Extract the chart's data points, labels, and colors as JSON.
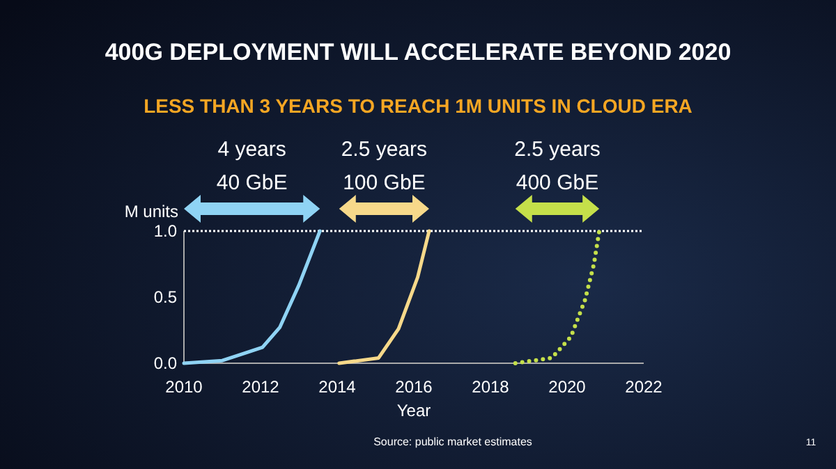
{
  "chart_data": {
    "type": "line",
    "title": "400G DEPLOYMENT WILL ACCELERATE BEYOND 2020",
    "subtitle": "LESS THAN 3 YEARS TO REACH 1M UNITS IN CLOUD ERA",
    "xlabel": "Year",
    "ylabel": "M units",
    "xlim": [
      2010,
      2022
    ],
    "xticks": [
      2010,
      2012,
      2014,
      2016,
      2018,
      2020,
      2022
    ],
    "ylim": [
      0,
      1
    ],
    "yticks": [
      {
        "value": 0,
        "label": "0.0"
      },
      {
        "value": 0.5,
        "label": "0.5"
      },
      {
        "value": 1,
        "label": "1.0"
      }
    ],
    "series": [
      {
        "name": "40 GbE",
        "color": "#8fd3f4",
        "line_style": "solid",
        "x": [
          2010,
          2011,
          2012.05,
          2012.5,
          2013,
          2013.55
        ],
        "values": [
          0,
          0.02,
          0.12,
          0.27,
          0.59,
          1
        ]
      },
      {
        "name": "100 GbE",
        "color": "#f7d98a",
        "line_style": "solid",
        "x": [
          2014.05,
          2015.08,
          2015.6,
          2016.1,
          2016.4
        ],
        "values": [
          0,
          0.04,
          0.26,
          0.65,
          1
        ]
      },
      {
        "name": "400 GbE",
        "color": "#c5e04a",
        "line_style": "dotted",
        "x": [
          2018.65,
          2019.6,
          2020.1,
          2020.47,
          2020.7,
          2020.84
        ],
        "values": [
          0,
          0.04,
          0.2,
          0.48,
          0.75,
          1
        ]
      }
    ],
    "ref_lines": [
      {
        "axis": "y",
        "value": 1,
        "color": "#ffffff",
        "line_style": "dotted"
      }
    ],
    "annotations": [
      "4 years",
      "2.5 years",
      "2.5 years",
      "Source: public market estimates",
      "11"
    ],
    "grid": false
  }
}
